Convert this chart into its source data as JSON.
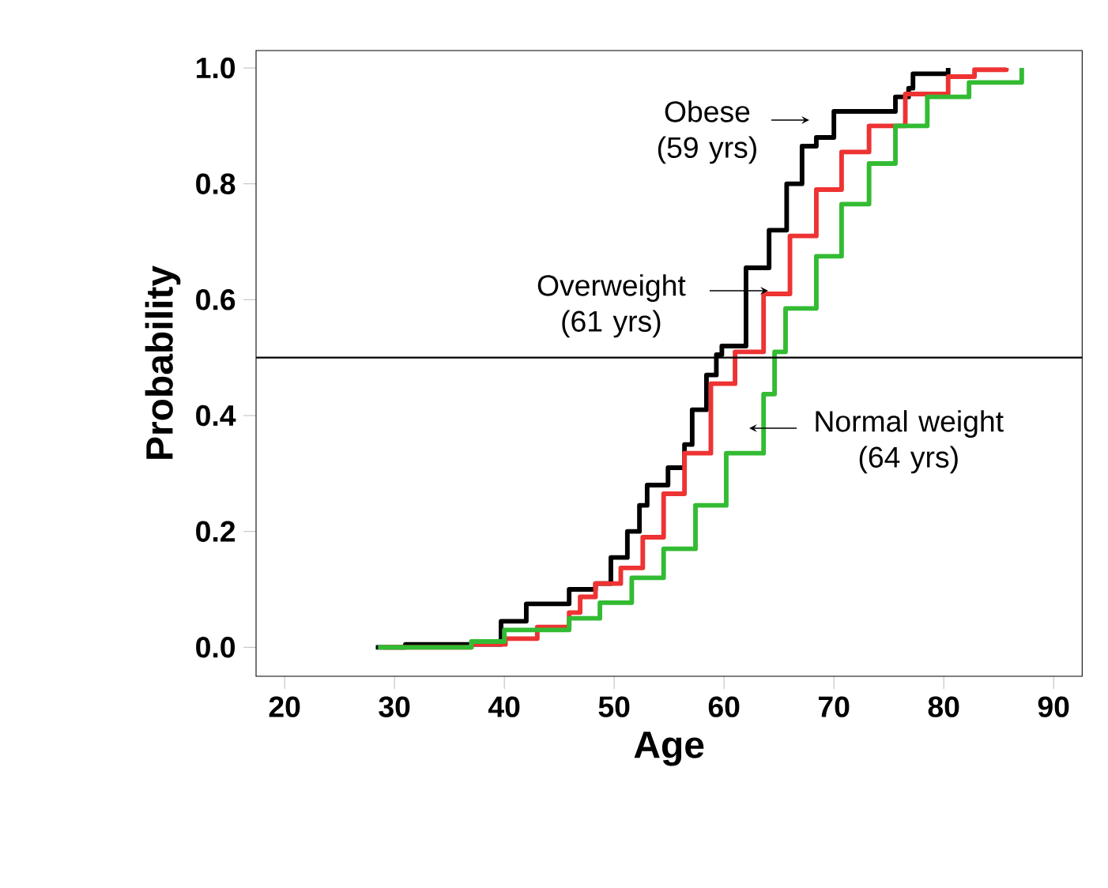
{
  "chart_data": {
    "type": "step",
    "xlabel": "Age",
    "ylabel": "Probability",
    "xlim": [
      17.4,
      92.6
    ],
    "ylim": [
      -0.05,
      1.03
    ],
    "xticks": [
      20,
      30,
      40,
      50,
      60,
      70,
      80,
      90
    ],
    "yticks": [
      {
        "value": 0,
        "label": "0.0"
      },
      {
        "value": 0.2,
        "label": "0.2"
      },
      {
        "value": 0.4,
        "label": "0.4"
      },
      {
        "value": 0.6,
        "label": "0.6"
      },
      {
        "value": 0.8,
        "label": "0.8"
      },
      {
        "value": 1,
        "label": "1.0"
      }
    ],
    "grid": false,
    "marker": "none",
    "line_style": "solid",
    "series": [
      {
        "color": "#000000",
        "x": [
          28.3,
          31,
          38.4,
          39.7,
          42,
          45.9,
          48.3,
          49.7,
          51.2,
          52.3,
          53,
          54.9,
          56.4,
          57.1,
          58.4,
          59.3,
          59.8,
          62,
          64.1,
          65.7,
          67.1,
          68.4,
          70,
          74.2,
          75.6,
          76.8,
          77.2,
          80.4
        ],
        "values": [
          0,
          0.005,
          null,
          0.045,
          0.075,
          0.1,
          0.11,
          0.155,
          0.2,
          0.245,
          0.28,
          0.31,
          0.35,
          0.41,
          0.47,
          0.505,
          0.52,
          0.655,
          0.72,
          0.8,
          0.865,
          0.88,
          0.925,
          0.925,
          0.95,
          0.965,
          0.99,
          1.0
        ]
      },
      {
        "color": "#ee3333",
        "x": [
          29,
          37,
          38.4,
          40.1,
          43,
          45.9,
          46.9,
          48.3,
          50.6,
          52.6,
          54.5,
          56.4,
          58.8,
          61,
          63.6,
          66,
          68.4,
          70.7,
          73.2,
          76.5,
          80.4,
          82.8,
          85.7
        ],
        "values": [
          0,
          0.005,
          0.005,
          0.015,
          0.035,
          0.06,
          0.087,
          0.11,
          0.137,
          0.19,
          0.265,
          0.335,
          0.455,
          0.51,
          0.61,
          0.71,
          0.79,
          0.855,
          0.9,
          0.955,
          0.985,
          0.997,
          1.0
        ]
      },
      {
        "color": "#33bb33",
        "x": [
          28.5,
          37,
          40,
          45.9,
          48.7,
          51.6,
          54.5,
          57.4,
          60.2,
          63.6,
          64.6,
          65.6,
          68.4,
          70.7,
          73.2,
          75.6,
          78.5,
          82.3,
          87.1
        ],
        "values": [
          0,
          0.01,
          0.03,
          0.05,
          0.077,
          0.12,
          0.17,
          0.245,
          0.335,
          0.437,
          0.51,
          0.585,
          0.675,
          0.765,
          0.835,
          0.9,
          0.95,
          0.975,
          1.0
        ]
      }
    ],
    "ref_lines": [
      {
        "axis": "y",
        "value": 0.5,
        "color": "#000000"
      }
    ],
    "annotations": [
      "Obese (59 yrs)",
      "Overweight (61 yrs)",
      "Normal weight (64 yrs)"
    ]
  }
}
